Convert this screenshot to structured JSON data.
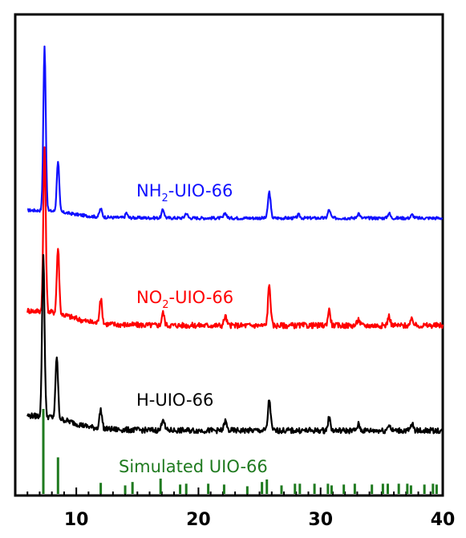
{
  "chart_data": {
    "type": "line",
    "title": "",
    "xlabel": "",
    "ylabel": "",
    "xlim": [
      5,
      40
    ],
    "x_ticks": [
      10,
      20,
      30,
      40
    ],
    "y_ticks": [],
    "grid": false,
    "colors": {
      "NH2-UIO-66": "#1010ff",
      "NO2-UIO-66": "#ff0000",
      "H-UIO-66": "#000000",
      "Simulated UIO-66": "#1f7a1f"
    },
    "series": [
      {
        "name": "NH2-UIO-66",
        "label_main": "NH",
        "label_sub": "2",
        "label_rest": "-UIO-66",
        "color": "#1010ff",
        "baseline": 0.0,
        "peaks": [
          [
            7.4,
            1.0,
            0.14
          ],
          [
            8.5,
            0.31,
            0.14
          ],
          [
            12.0,
            0.05,
            0.15
          ],
          [
            14.1,
            0.03,
            0.12
          ],
          [
            17.1,
            0.05,
            0.15
          ],
          [
            19.0,
            0.03,
            0.15
          ],
          [
            22.2,
            0.03,
            0.15
          ],
          [
            25.8,
            0.16,
            0.15
          ],
          [
            28.2,
            0.02,
            0.15
          ],
          [
            30.7,
            0.05,
            0.15
          ],
          [
            33.1,
            0.03,
            0.15
          ],
          [
            35.6,
            0.03,
            0.15
          ],
          [
            37.5,
            0.02,
            0.15
          ]
        ],
        "x_end": 40
      },
      {
        "name": "NO2-UIO-66",
        "label_main": "NO",
        "label_sub": "2",
        "label_rest": "-UIO-66",
        "color": "#ff0000",
        "baseline": 0.0,
        "peaks": [
          [
            7.4,
            0.53,
            0.14
          ],
          [
            8.5,
            0.21,
            0.14
          ],
          [
            12.0,
            0.08,
            0.15
          ],
          [
            17.1,
            0.04,
            0.15
          ],
          [
            22.2,
            0.03,
            0.15
          ],
          [
            25.8,
            0.13,
            0.15
          ],
          [
            30.7,
            0.05,
            0.15
          ],
          [
            33.1,
            0.02,
            0.15
          ],
          [
            35.6,
            0.03,
            0.15
          ],
          [
            37.5,
            0.02,
            0.15
          ]
        ],
        "x_end": 40
      },
      {
        "name": "H-UIO-66",
        "label_main": "H-UIO-66",
        "label_sub": "",
        "label_rest": "",
        "color": "#000000",
        "baseline": 0.0,
        "peaks": [
          [
            7.3,
            0.52,
            0.14
          ],
          [
            8.4,
            0.2,
            0.14
          ],
          [
            12.0,
            0.06,
            0.15
          ],
          [
            17.1,
            0.04,
            0.15
          ],
          [
            22.2,
            0.03,
            0.15
          ],
          [
            25.8,
            0.1,
            0.15
          ],
          [
            30.7,
            0.04,
            0.15
          ],
          [
            33.1,
            0.02,
            0.15
          ],
          [
            35.6,
            0.02,
            0.15
          ],
          [
            37.5,
            0.02,
            0.15
          ]
        ],
        "x_end": 40
      }
    ],
    "simulated": {
      "name": "Simulated UIO-66",
      "color": "#1f7a1f",
      "sticks": [
        [
          7.3,
          1.0
        ],
        [
          8.5,
          0.43
        ],
        [
          12.0,
          0.13
        ],
        [
          14.0,
          0.1
        ],
        [
          14.6,
          0.14
        ],
        [
          16.9,
          0.18
        ],
        [
          18.5,
          0.11
        ],
        [
          19.0,
          0.12
        ],
        [
          20.8,
          0.12
        ],
        [
          22.1,
          0.11
        ],
        [
          24.0,
          0.09
        ],
        [
          25.2,
          0.14
        ],
        [
          25.6,
          0.17
        ],
        [
          26.8,
          0.1
        ],
        [
          27.9,
          0.12
        ],
        [
          28.3,
          0.12
        ],
        [
          29.5,
          0.12
        ],
        [
          30.6,
          0.12
        ],
        [
          30.9,
          0.1
        ],
        [
          31.9,
          0.11
        ],
        [
          32.8,
          0.12
        ],
        [
          34.2,
          0.11
        ],
        [
          35.1,
          0.12
        ],
        [
          35.5,
          0.12
        ],
        [
          36.4,
          0.12
        ],
        [
          37.1,
          0.12
        ],
        [
          37.4,
          0.1
        ],
        [
          38.5,
          0.11
        ],
        [
          39.2,
          0.12
        ],
        [
          39.5,
          0.11
        ]
      ]
    }
  }
}
